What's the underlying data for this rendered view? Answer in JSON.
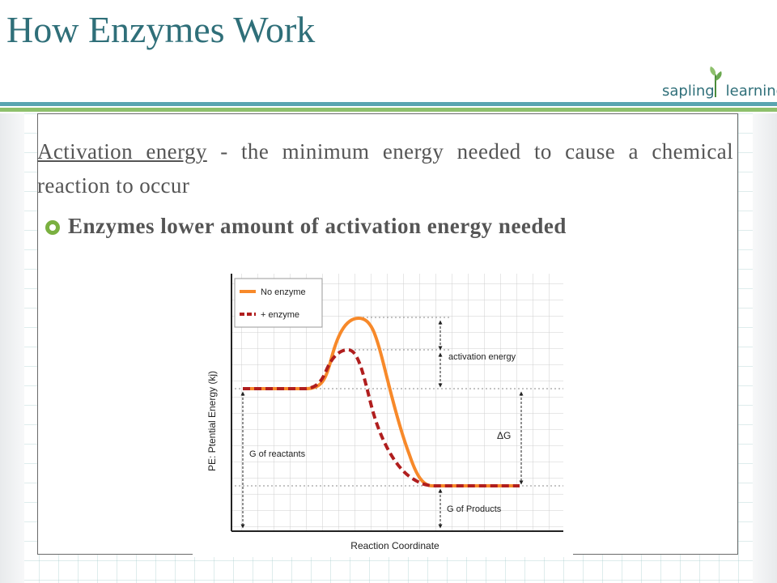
{
  "slide": {
    "title": "How Enzymes Work",
    "logo": {
      "part1": "sapling",
      "part2": "learning"
    },
    "definition": {
      "term": "Activation energy",
      "text": " - the minimum energy needed to cause a chemical reaction to occur"
    },
    "bullet": "Enzymes lower amount of activation energy needed"
  },
  "diagram": {
    "legend": {
      "no_enzyme": "No enzyme",
      "with_enzyme": "+ enzyme"
    },
    "ylabel": "PE:  Ptential Energy (kj)",
    "xlabel": "Reaction Coordinate",
    "labels": {
      "activation_energy": "activation energy",
      "delta_g": "ΔG",
      "g_reactants": "G of reactants",
      "g_products": "G of Products"
    },
    "colors": {
      "no_enzyme": "#f7892a",
      "with_enzyme": "#b01e1e"
    }
  }
}
